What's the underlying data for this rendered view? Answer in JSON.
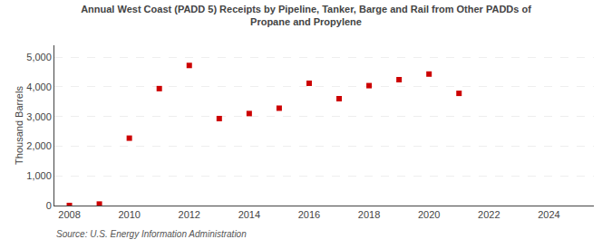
{
  "chart_data": {
    "type": "scatter",
    "title": "Annual West Coast (PADD 5) Receipts by Pipeline, Tanker, Barge and Rail from Other PADDs of",
    "subtitle": "Propane and Propylene",
    "y_label": "Thousand Barrels",
    "annotations": [
      "Source: U.S. Energy Information Administration"
    ],
    "x": [
      2008,
      2009,
      2010,
      2011,
      2012,
      2013,
      2014,
      2015,
      2016,
      2017,
      2018,
      2019,
      2020,
      2021
    ],
    "values": [
      2,
      50,
      2270,
      3940,
      4720,
      2930,
      3100,
      3280,
      4120,
      3600,
      4040,
      4240,
      4430,
      3780
    ],
    "color": "#cc0000",
    "marker": "square",
    "xlim": [
      2007.5,
      2025.5
    ],
    "xticks": [
      2008,
      2010,
      2012,
      2014,
      2016,
      2018,
      2020,
      2022,
      2024
    ],
    "ylim": [
      0,
      5400
    ],
    "yticks": [
      0,
      {
        "value": 1000,
        "label": "1,000"
      },
      {
        "value": 2000,
        "label": "2,000"
      },
      {
        "value": 3000,
        "label": "3,000"
      },
      {
        "value": 4000,
        "label": "4,000"
      },
      {
        "value": 5000,
        "label": "5,000"
      }
    ],
    "grid": "y"
  }
}
